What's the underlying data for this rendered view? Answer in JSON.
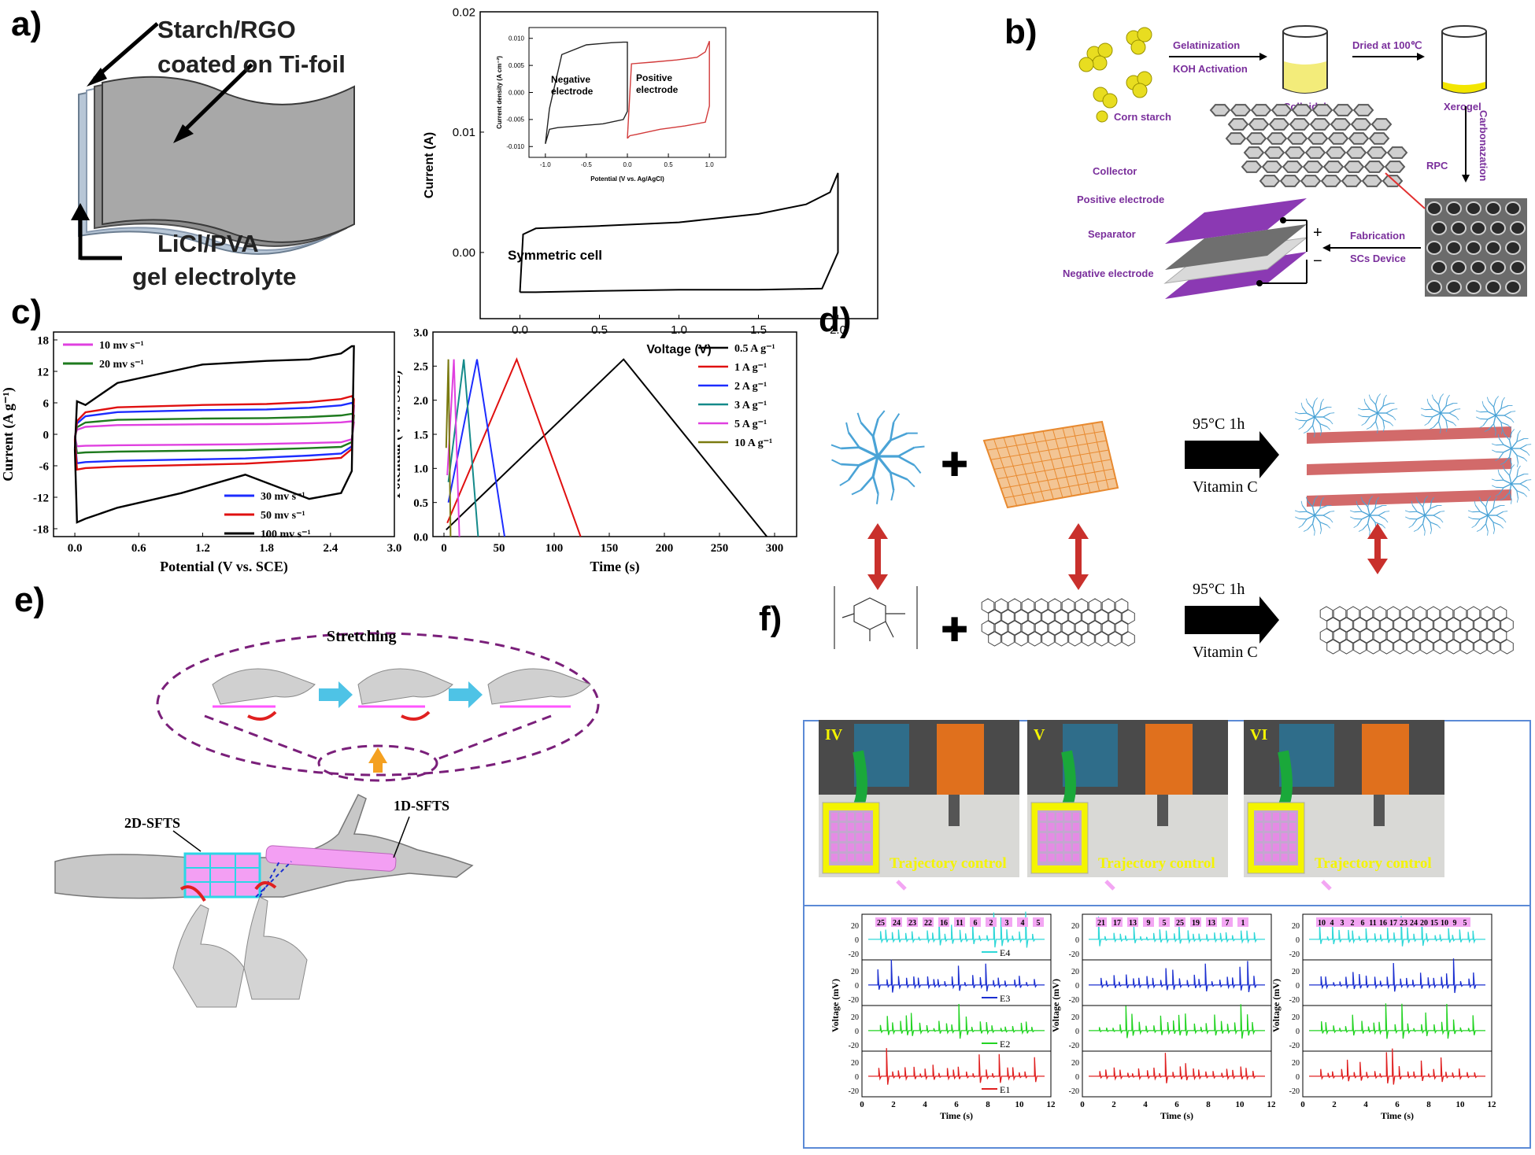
{
  "panels": {
    "a": {
      "label": "a)",
      "sketch": {
        "top_label_1": "Starch/RGO",
        "top_label_2": "coated on Ti-foil",
        "bottom_label_1": "LiCl/PVA",
        "bottom_label_2": "gel electrolyte"
      },
      "annotation": "Symmetric cell",
      "inset": {
        "neg_label_1": "Negative",
        "neg_label_2": "electrode",
        "pos_label_1": "Positive",
        "pos_label_2": "electrode"
      }
    },
    "b": {
      "label": "b)",
      "steps": {
        "corn_starch": "Corn starch",
        "gel_1": "Gelatinization",
        "gel_2": "KOH Activation",
        "colloidal": "Colloidal",
        "dried": "Dried at 100℃",
        "xerogel": "Xerogel",
        "carbon": "Carbonazation",
        "rpc": "RPC",
        "fab_1": "Fabrication",
        "fab_2": "SCs Device",
        "collector": "Collector",
        "pos": "Positive electrode",
        "sep": "Separator",
        "neg": "Negative electrode",
        "plus": "+",
        "minus": "−"
      },
      "colors": {
        "purple": "#7a2f9c",
        "yellow": "#f3e600"
      }
    },
    "c": {
      "label": "c)"
    },
    "d": {
      "label": "d)",
      "condition_1": "95°C  1h",
      "condition_2": "Vitamin C",
      "condition_3": "95°C  1h",
      "condition_4": "Vitamin C",
      "plus": "✚",
      "colors": {
        "blue": "#4aa3d6",
        "orange": "#f0a35a",
        "red": "#c9302c"
      }
    },
    "e": {
      "label": "e)",
      "stretching": "Stretching",
      "sfts_2d": "2D-SFTS",
      "sfts_1d": "1D-SFTS"
    },
    "f": {
      "label": "f)",
      "photos": [
        {
          "roman": "IV",
          "caption": "Trajectory control"
        },
        {
          "roman": "V",
          "caption": "Trajectory control"
        },
        {
          "roman": "VI",
          "caption": "Trajectory control"
        }
      ],
      "y_axis_label": "Voltage (mV)",
      "x_axis_label": "Time (s)",
      "channels": [
        "E4",
        "E3",
        "E2",
        "E1"
      ],
      "channel_colors": [
        "#2fd8d8",
        "#1b2fd0",
        "#22d322",
        "#e02020"
      ],
      "peak_labels": [
        [
          "25",
          "24",
          "23",
          "22",
          "16",
          "11",
          "6",
          "2",
          "3",
          "4",
          "5"
        ],
        [
          "21",
          "17",
          "13",
          "9",
          "5",
          "25",
          "19",
          "13",
          "7",
          "1"
        ],
        [
          "10",
          "4",
          "3",
          "2",
          "6",
          "11",
          "16",
          "17",
          "23",
          "24",
          "20",
          "15",
          "10",
          "9",
          "5"
        ]
      ]
    }
  },
  "chart_data": [
    {
      "id": "a-cv-symmetric",
      "type": "line",
      "xlabel": "Voltage (V)",
      "ylabel": "Current (A)",
      "xlim": [
        -0.25,
        2.25
      ],
      "ylim": [
        -0.0055,
        0.02
      ],
      "xticks": [
        0.0,
        0.5,
        1.0,
        1.5,
        2.0
      ],
      "yticks": [
        0.0,
        0.01,
        0.02
      ],
      "xtick_labels": [
        "0.0",
        "0.5",
        "1.0",
        "1.5",
        "2.0"
      ],
      "ytick_labels": [
        "0.00",
        "0.01",
        "0.02"
      ],
      "series": [
        {
          "x": [
            0.0,
            0.02,
            0.1,
            0.5,
            1.0,
            1.5,
            1.8,
            1.95,
            2.0,
            2.0,
            1.9,
            1.5,
            1.0,
            0.5,
            0.1,
            0.02,
            0.0
          ],
          "y": [
            -0.0033,
            0.0015,
            0.002,
            0.0022,
            0.0025,
            0.0032,
            0.004,
            0.005,
            0.0066,
            0.0,
            -0.003,
            -0.0031,
            -0.0031,
            -0.0032,
            -0.0033,
            -0.0033,
            -0.0033
          ]
        }
      ],
      "inset": {
        "xlabel": "Potential (V vs. Ag/AgCl)",
        "ylabel": "Current density (A cm⁻²)",
        "xlim": [
          -1.2,
          1.2
        ],
        "ylim": [
          -0.012,
          0.012
        ],
        "xticks": [
          -1.0,
          -0.5,
          0.0,
          0.5,
          1.0
        ],
        "yticks": [
          -0.01,
          -0.005,
          0.0,
          0.005,
          0.01
        ],
        "xtick_labels": [
          "-1.0",
          "-0.5",
          "0.0",
          "0.5",
          "1.0"
        ],
        "ytick_labels": [
          "-0.010",
          "-0.005",
          "0.000",
          "0.005",
          "0.010"
        ],
        "series": [
          {
            "color": "#222222",
            "x": [
              -1.0,
              -0.95,
              -0.8,
              -0.5,
              -0.2,
              -0.05,
              0.0,
              0.0,
              -0.05,
              -0.3,
              -0.6,
              -0.85,
              -0.95,
              -1.0
            ],
            "y": [
              -0.0095,
              -0.003,
              0.007,
              0.0088,
              0.0092,
              0.0093,
              0.0093,
              -0.0035,
              -0.005,
              -0.0058,
              -0.0062,
              -0.0065,
              -0.0068,
              -0.0095
            ]
          },
          {
            "color": "#d23a3a",
            "x": [
              0.0,
              0.05,
              0.3,
              0.6,
              0.85,
              0.95,
              1.0,
              1.0,
              0.95,
              0.7,
              0.4,
              0.1,
              0.03,
              0.0
            ],
            "y": [
              -0.0085,
              0.0053,
              0.0056,
              0.006,
              0.0065,
              0.0075,
              0.0095,
              -0.0025,
              -0.0055,
              -0.0062,
              -0.0068,
              -0.0078,
              -0.008,
              -0.0085
            ]
          }
        ]
      }
    },
    {
      "id": "c-cv",
      "type": "line",
      "xlabel": "Potential (V vs. SCE)",
      "ylabel": "Current (A g⁻¹)",
      "xlim": [
        -0.2,
        3.0
      ],
      "ylim": [
        -19.5,
        19.5
      ],
      "xticks": [
        0.0,
        0.6,
        1.2,
        1.8,
        2.4,
        3.0
      ],
      "yticks": [
        -18,
        -12,
        -6,
        0,
        6,
        12,
        18
      ],
      "xtick_labels": [
        "0.0",
        "0.6",
        "1.2",
        "1.8",
        "2.4",
        "3.0"
      ],
      "ytick_labels": [
        "-18",
        "-12",
        "-6",
        "0",
        "6",
        "12",
        "18"
      ],
      "legend": [
        "10 mv s⁻¹",
        "20 mv s⁻¹",
        "30 mv s⁻¹",
        "50 mv s⁻¹",
        "100 mv s⁻¹"
      ],
      "series": [
        {
          "name": "10 mv s⁻¹",
          "color": "#e040e0",
          "amp": 1.9
        },
        {
          "name": "20 mv s⁻¹",
          "color": "#1e7a1e",
          "amp": 3.0
        },
        {
          "name": "30 mv s⁻¹",
          "color": "#1c2cff",
          "amp": 4.6
        },
        {
          "name": "50 mv s⁻¹",
          "color": "#e01010",
          "amp": 5.6
        },
        {
          "name": "100 mv s⁻¹",
          "color": "#000000",
          "amp": 14.0
        }
      ]
    },
    {
      "id": "c-gcd",
      "type": "line",
      "xlabel": "Time (s)",
      "ylabel": "Potential (V vs. SCE)",
      "xlim": [
        -10,
        320
      ],
      "ylim": [
        0.0,
        3.0
      ],
      "xticks": [
        0,
        50,
        100,
        150,
        200,
        250,
        300
      ],
      "yticks": [
        0.0,
        0.5,
        1.0,
        1.5,
        2.0,
        2.5,
        3.0
      ],
      "xtick_labels": [
        "0",
        "50",
        "100",
        "150",
        "200",
        "250",
        "300"
      ],
      "ytick_labels": [
        "0.0",
        "0.5",
        "1.0",
        "1.5",
        "2.0",
        "2.5",
        "3.0"
      ],
      "legend": [
        "0.5 A g⁻¹",
        "1 A g⁻¹",
        "2 A g⁻¹",
        "3 A g⁻¹",
        "5 A g⁻¹",
        "10 A g⁻¹"
      ],
      "series": [
        {
          "name": "0.5 A g⁻¹",
          "color": "#000000",
          "x": [
            2,
            163,
            293
          ],
          "y": [
            0.1,
            2.6,
            0.0
          ]
        },
        {
          "name": "1 A g⁻¹",
          "color": "#e01010",
          "x": [
            3,
            66,
            124
          ],
          "y": [
            0.2,
            2.6,
            0.0
          ]
        },
        {
          "name": "2 A g⁻¹",
          "color": "#1c2cff",
          "x": [
            4,
            30,
            55
          ],
          "y": [
            0.5,
            2.6,
            0.0
          ]
        },
        {
          "name": "3 A g⁻¹",
          "color": "#148a8a",
          "x": [
            4,
            18,
            31
          ],
          "y": [
            0.8,
            2.6,
            0.0
          ]
        },
        {
          "name": "5 A g⁻¹",
          "color": "#e040e0",
          "x": [
            3,
            9,
            14
          ],
          "y": [
            0.9,
            2.6,
            0.0
          ]
        },
        {
          "name": "10 A g⁻¹",
          "color": "#7a7a10",
          "x": [
            2,
            4,
            6
          ],
          "y": [
            1.3,
            2.6,
            0.0
          ]
        }
      ]
    }
  ]
}
